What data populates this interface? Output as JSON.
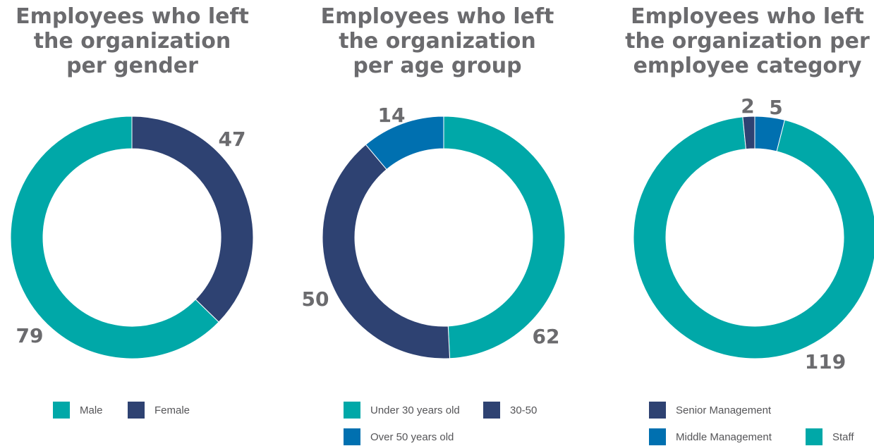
{
  "colors": {
    "teal": "#00a8a8",
    "navy": "#2e4272",
    "blue": "#0070b0",
    "text": "#6b6b6e"
  },
  "chart_data": [
    {
      "type": "donut",
      "title": "Employees who left\nthe organization\nper gender",
      "series": [
        {
          "name": "Female",
          "value": 47,
          "color": "#2e4272"
        },
        {
          "name": "Male",
          "value": 79,
          "color": "#00a8a8"
        }
      ],
      "legend": [
        "Male",
        "Female"
      ],
      "legend_placement": "bottom"
    },
    {
      "type": "donut",
      "title": "Employees who left\nthe organization\nper age group",
      "series": [
        {
          "name": "Under 30 years old",
          "value": 62,
          "color": "#00a8a8"
        },
        {
          "name": "30-50",
          "value": 50,
          "color": "#2e4272"
        },
        {
          "name": "Over 50 years old",
          "value": 14,
          "color": "#0070b0"
        }
      ],
      "legend": [
        "Under 30 years old",
        "30-50",
        "Over 50 years old"
      ],
      "legend_placement": "bottom"
    },
    {
      "type": "donut",
      "title": "Employees who left\nthe organization per\nemployee category",
      "series": [
        {
          "name": "Middle Management",
          "value": 5,
          "color": "#0070b0"
        },
        {
          "name": "Staff",
          "value": 119,
          "color": "#00a8a8"
        },
        {
          "name": "Senior Management",
          "value": 2,
          "color": "#2e4272"
        }
      ],
      "legend": [
        "Senior Management",
        "Middle Management",
        "Staff"
      ],
      "legend_placement": "bottom"
    }
  ]
}
